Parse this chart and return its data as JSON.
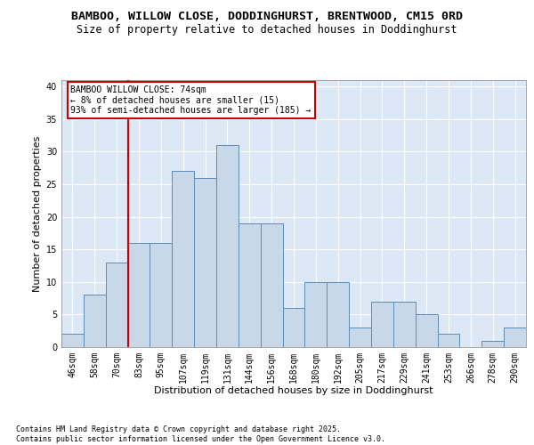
{
  "title_line1": "BAMBOO, WILLOW CLOSE, DODDINGHURST, BRENTWOOD, CM15 0RD",
  "title_line2": "Size of property relative to detached houses in Doddinghurst",
  "xlabel": "Distribution of detached houses by size in Doddinghurst",
  "ylabel": "Number of detached properties",
  "categories": [
    "46sqm",
    "58sqm",
    "70sqm",
    "83sqm",
    "95sqm",
    "107sqm",
    "119sqm",
    "131sqm",
    "144sqm",
    "156sqm",
    "168sqm",
    "180sqm",
    "192sqm",
    "205sqm",
    "217sqm",
    "229sqm",
    "241sqm",
    "253sqm",
    "266sqm",
    "278sqm",
    "290sqm"
  ],
  "values": [
    2,
    8,
    13,
    16,
    16,
    27,
    26,
    31,
    19,
    19,
    6,
    10,
    10,
    3,
    7,
    7,
    5,
    2,
    0,
    1,
    3
  ],
  "bar_color": "#c8d8e8",
  "bar_edge_color": "#5b8db8",
  "red_line_index": 2,
  "annotation_text": "BAMBOO WILLOW CLOSE: 74sqm\n← 8% of detached houses are smaller (15)\n93% of semi-detached houses are larger (185) →",
  "annotation_box_color": "#ffffff",
  "annotation_box_edge": "#cc0000",
  "red_line_color": "#cc0000",
  "background_color": "#dce8f5",
  "grid_color": "#ffffff",
  "ylim": [
    0,
    41
  ],
  "yticks": [
    0,
    5,
    10,
    15,
    20,
    25,
    30,
    35,
    40
  ],
  "footer_text": "Contains HM Land Registry data © Crown copyright and database right 2025.\nContains public sector information licensed under the Open Government Licence v3.0.",
  "title_fontsize": 9.5,
  "subtitle_fontsize": 8.5,
  "tick_fontsize": 7,
  "xlabel_fontsize": 8,
  "ylabel_fontsize": 8,
  "footer_fontsize": 6
}
